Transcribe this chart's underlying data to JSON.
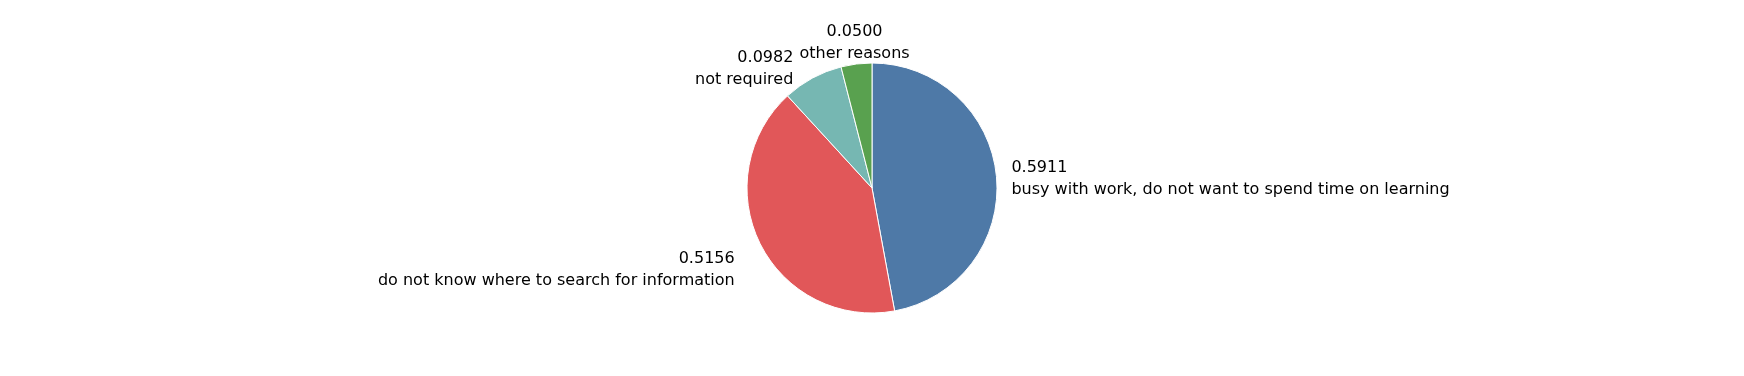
{
  "chart_data": {
    "type": "pie",
    "categories": [
      "busy with work, do not want to spend time on learning",
      "do not know where to search for information",
      "not required",
      "other reasons"
    ],
    "values": [
      0.5911,
      0.5156,
      0.0982,
      0.05
    ],
    "value_labels": [
      "0.5911",
      "0.5156",
      "0.0982",
      "0.0500"
    ],
    "colors": [
      "#4e79a7",
      "#e15759",
      "#76b7b2",
      "#59a14f"
    ]
  }
}
